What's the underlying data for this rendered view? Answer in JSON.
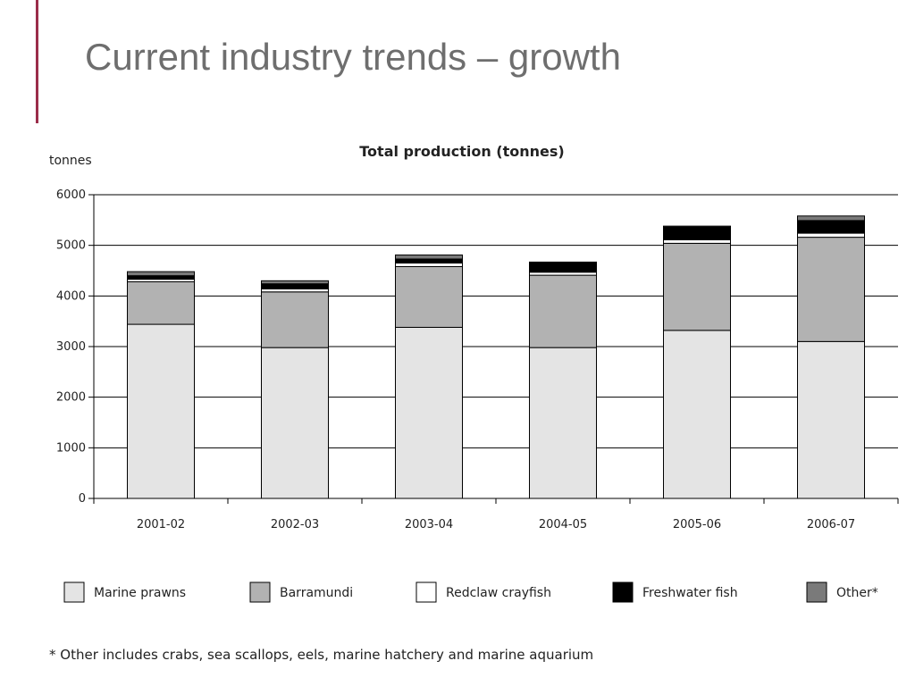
{
  "slide": {
    "title": "Current industry trends – growth",
    "accent_color": "#9b2d4a"
  },
  "footnote": "* Other includes crabs, sea scallops, eels, marine hatchery and marine aquarium",
  "chart_data": {
    "type": "bar",
    "stacked": true,
    "title": "Total production (tonnes)",
    "ylabel": "tonnes",
    "xlabel": "",
    "ylim": [
      0,
      6000
    ],
    "yticks": [
      0,
      1000,
      2000,
      3000,
      4000,
      5000,
      6000
    ],
    "grid": true,
    "legend_position": "bottom",
    "categories": [
      "2001-02",
      "2002-03",
      "2003-04",
      "2004-05",
      "2005-06",
      "2006-07"
    ],
    "series": [
      {
        "name": "Marine prawns",
        "color": "#e4e4e4",
        "values": [
          3440,
          2980,
          3380,
          2980,
          3320,
          3100
        ]
      },
      {
        "name": "Barramundi",
        "color": "#b2b2b2",
        "values": [
          840,
          1100,
          1200,
          1430,
          1720,
          2060
        ]
      },
      {
        "name": "Redclaw crayfish",
        "color": "#ffffff",
        "values": [
          50,
          60,
          70,
          60,
          70,
          80
        ]
      },
      {
        "name": "Freshwater fish",
        "color": "#000000",
        "values": [
          70,
          100,
          80,
          180,
          250,
          250
        ]
      },
      {
        "name": "Other*",
        "color": "#7a7a7a",
        "values": [
          80,
          60,
          80,
          20,
          20,
          90
        ]
      }
    ]
  }
}
